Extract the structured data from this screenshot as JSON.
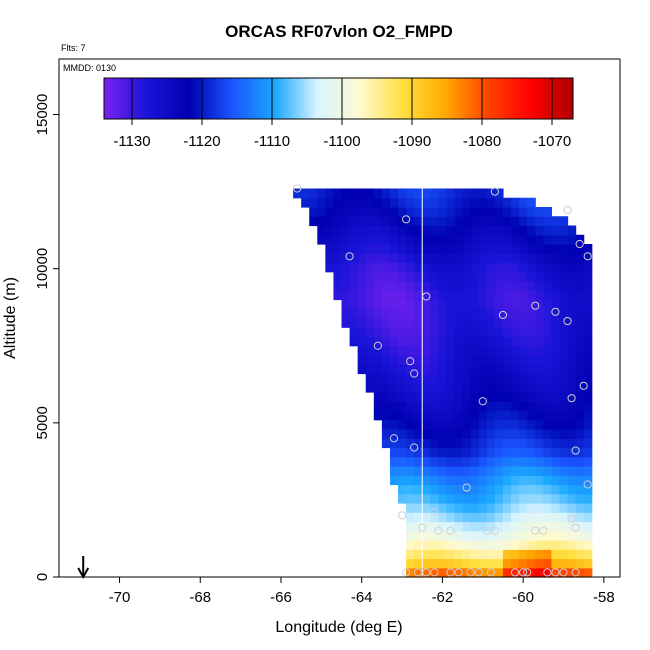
{
  "title": "ORCAS RF07vlon O2_FMPD",
  "flts_label": "Flts: 7",
  "mmdd_label": "MMDD: 0130",
  "colors": {
    "ramp": [
      "#7a22f0",
      "#1a14d8",
      "#0000b0",
      "#1a55ff",
      "#1aa8ff",
      "#d8f4ff",
      "#fffad0",
      "#ffe040",
      "#ffaa00",
      "#ff4400",
      "#ff0000",
      "#b00000"
    ],
    "background": "#ffffff",
    "marker": "#d0d0d0"
  },
  "chart_data": {
    "type": "heatmap",
    "title": "ORCAS RF07vlon O2_FMPD",
    "xlabel": "Longitude (deg E)",
    "ylabel": "Altitude (m)",
    "xlim": [
      -71.5,
      -57.6
    ],
    "ylim": [
      0,
      16800
    ],
    "xticks": [
      -70,
      -68,
      -66,
      -64,
      -62,
      -60,
      -58
    ],
    "yticks": [
      0,
      5000,
      10000,
      15000
    ],
    "xtick_labels": [
      "-70",
      "-68",
      "-66",
      "-64",
      "-62",
      "-60",
      "-58"
    ],
    "ytick_labels": [
      "0",
      "5000",
      "10000",
      "15000"
    ],
    "grid": false,
    "colorbar": {
      "range": [
        -1134,
        -1067
      ],
      "ticks": [
        -1130,
        -1120,
        -1110,
        -1100,
        -1090,
        -1080,
        -1070
      ],
      "tick_labels": [
        "-1130",
        "-1120",
        "-1110",
        "-1100",
        "-1090",
        "-1080",
        "-1070"
      ],
      "placement": "top"
    },
    "field": {
      "lon_range": [
        -65.7,
        -58.3
      ],
      "boundary_lon": [
        -65.8,
        -65.5,
        -65.0,
        -64.6,
        -64.2,
        -63.8,
        -63.5,
        -63.2,
        -63.0,
        -62.8,
        -62.8
      ],
      "boundary_alt": [
        12700,
        12200,
        10700,
        9000,
        7500,
        6000,
        4700,
        3100,
        2500,
        1600,
        0
      ],
      "top_lon": [
        -65.7,
        -63.0,
        -61.0,
        -59.5,
        -58.6,
        -58.3
      ],
      "top_alt": [
        12700,
        12700,
        12600,
        12100,
        11200,
        10500
      ],
      "value_profile_alt": [
        0,
        300,
        600,
        900,
        1200,
        1600,
        2000,
        2500,
        3000,
        3500,
        4000,
        5000,
        6000,
        7000,
        8000,
        9000,
        10000,
        11000,
        12000,
        12700
      ],
      "value_profile_val": [
        -1078,
        -1088,
        -1093,
        -1096,
        -1100,
        -1103,
        -1106,
        -1109,
        -1111,
        -1114,
        -1118,
        -1122,
        -1125,
        -1127,
        -1129,
        -1130,
        -1128,
        -1124,
        -1120,
        -1118
      ]
    },
    "vertical_line_lon": -62.5,
    "arrow_lon": -70.9,
    "points": [
      {
        "lon": -65.6,
        "alt": 12600
      },
      {
        "lon": -60.7,
        "alt": 12500
      },
      {
        "lon": -58.9,
        "alt": 11900
      },
      {
        "lon": -62.9,
        "alt": 11600
      },
      {
        "lon": -58.6,
        "alt": 10800
      },
      {
        "lon": -64.3,
        "alt": 10400
      },
      {
        "lon": -58.4,
        "alt": 10400
      },
      {
        "lon": -62.4,
        "alt": 9100
      },
      {
        "lon": -59.7,
        "alt": 8800
      },
      {
        "lon": -60.5,
        "alt": 8500
      },
      {
        "lon": -59.2,
        "alt": 8600
      },
      {
        "lon": -58.9,
        "alt": 8300
      },
      {
        "lon": -63.6,
        "alt": 7500
      },
      {
        "lon": -62.8,
        "alt": 7000
      },
      {
        "lon": -62.7,
        "alt": 6600
      },
      {
        "lon": -58.5,
        "alt": 6200
      },
      {
        "lon": -58.8,
        "alt": 5800
      },
      {
        "lon": -61.0,
        "alt": 5700
      },
      {
        "lon": -63.2,
        "alt": 4500
      },
      {
        "lon": -62.7,
        "alt": 4200
      },
      {
        "lon": -58.7,
        "alt": 4100
      },
      {
        "lon": -58.4,
        "alt": 3000
      },
      {
        "lon": -61.4,
        "alt": 2900
      },
      {
        "lon": -62.2,
        "alt": 2100
      },
      {
        "lon": -63.0,
        "alt": 2000
      },
      {
        "lon": -58.8,
        "alt": 1900
      },
      {
        "lon": -62.5,
        "alt": 1600
      },
      {
        "lon": -62.1,
        "alt": 1500
      },
      {
        "lon": -61.8,
        "alt": 1500
      },
      {
        "lon": -60.9,
        "alt": 1500
      },
      {
        "lon": -60.7,
        "alt": 1500
      },
      {
        "lon": -59.7,
        "alt": 1500
      },
      {
        "lon": -59.5,
        "alt": 1500
      },
      {
        "lon": -58.7,
        "alt": 1600
      },
      {
        "lon": -62.9,
        "alt": 150
      },
      {
        "lon": -62.6,
        "alt": 150
      },
      {
        "lon": -62.4,
        "alt": 150
      },
      {
        "lon": -62.2,
        "alt": 150
      },
      {
        "lon": -61.8,
        "alt": 150
      },
      {
        "lon": -61.6,
        "alt": 150
      },
      {
        "lon": -61.3,
        "alt": 150
      },
      {
        "lon": -61.1,
        "alt": 150
      },
      {
        "lon": -60.8,
        "alt": 150
      },
      {
        "lon": -60.2,
        "alt": 150
      },
      {
        "lon": -60.0,
        "alt": 150
      },
      {
        "lon": -59.9,
        "alt": 150
      },
      {
        "lon": -59.4,
        "alt": 150
      },
      {
        "lon": -59.2,
        "alt": 150
      },
      {
        "lon": -59.0,
        "alt": 150
      },
      {
        "lon": -58.7,
        "alt": 150
      }
    ]
  }
}
